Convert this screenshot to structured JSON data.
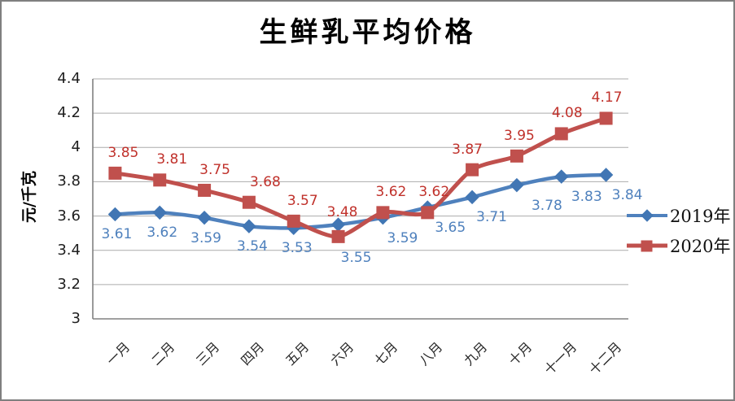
{
  "window": {
    "background": "#ffffff",
    "border_color": "#7f7f7f"
  },
  "chart_data": {
    "type": "line",
    "title": "生鲜乳平均价格",
    "ylabel": "元/千克",
    "xlabel": "",
    "categories": [
      "一月",
      "二月",
      "三月",
      "四月",
      "五月",
      "六月",
      "七月",
      "八月",
      "九月",
      "十月",
      "十一月",
      "十二月"
    ],
    "series": [
      {
        "name": "2019年",
        "color": "#4F81BD",
        "marker_color": "#4176B4",
        "label_color": "#4F81BD",
        "marker": "diamond",
        "values": [
          3.61,
          3.62,
          3.59,
          3.54,
          3.53,
          3.55,
          3.59,
          3.65,
          3.71,
          3.78,
          3.83,
          3.84
        ]
      },
      {
        "name": "2020年",
        "color": "#C0504D",
        "marker_color": "#C0504D",
        "label_color": "#C0312B",
        "marker": "square",
        "values": [
          3.85,
          3.81,
          3.75,
          3.68,
          3.57,
          3.48,
          3.62,
          3.62,
          3.87,
          3.95,
          4.08,
          4.17
        ]
      }
    ],
    "ylim": [
      3,
      4.4
    ],
    "ytick_labels": [
      "4.4",
      "4.2",
      "4",
      "3.8",
      "3.6",
      "3.4",
      "3.2",
      "3"
    ],
    "grid": true,
    "data_labels": true,
    "legend_position": "right"
  },
  "colors": {
    "gridline": "#ABABAB",
    "axis": "#808080",
    "tick_text": "#1f1f1f",
    "month_text": "#262626",
    "title_text": "#000000"
  }
}
